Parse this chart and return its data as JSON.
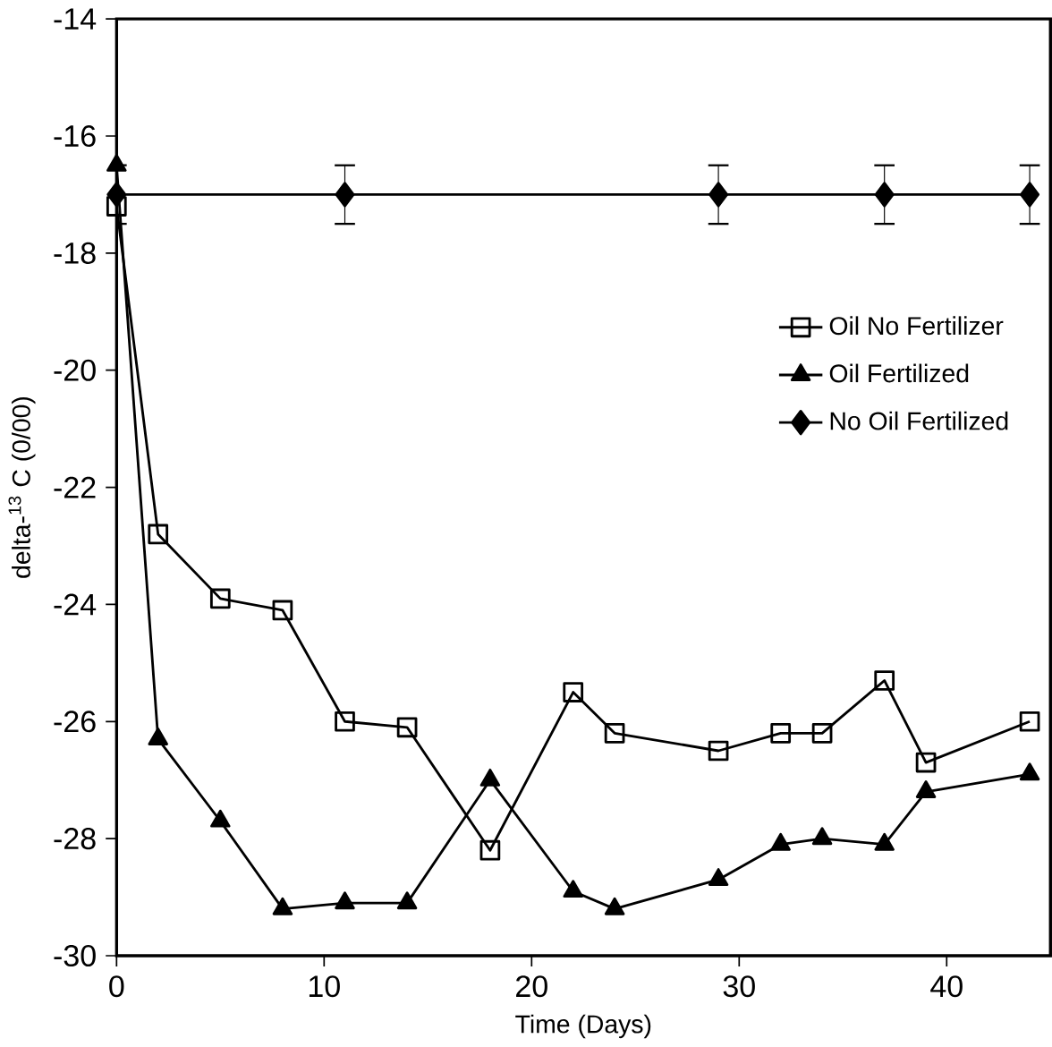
{
  "chart_data": {
    "type": "line",
    "xlabel": "Time (Days)",
    "ylabel": "delta-$^{13}$ C (0/00)",
    "xlim": [
      0,
      45
    ],
    "ylim": [
      -30,
      -14
    ],
    "xticks": [
      0,
      10,
      20,
      30,
      40
    ],
    "yticks": [
      -30,
      -28,
      -26,
      -24,
      -22,
      -20,
      -18,
      -16,
      -14
    ],
    "legend": "right",
    "grid": false,
    "series": [
      {
        "name": "Oil No Fertilizer",
        "color": "#000000",
        "marker": "square",
        "x": [
          0,
          2,
          5,
          8,
          11,
          14,
          18,
          22,
          24,
          29,
          32,
          34,
          37,
          39,
          44
        ],
        "values": [
          -17.2,
          -22.8,
          -23.9,
          -24.1,
          -26,
          -26.1,
          -28.2,
          -25.5,
          -26.2,
          -26.5,
          -26.2,
          -26.2,
          -25.3,
          -26.7,
          -26
        ]
      },
      {
        "name": "Oil Fertilized",
        "color": "#000000",
        "marker": "triangle",
        "x": [
          0,
          2,
          5,
          8,
          11,
          14,
          18,
          22,
          24,
          29,
          32,
          34,
          37,
          39,
          44
        ],
        "values": [
          -16.5,
          -26.3,
          -27.7,
          -29.2,
          -29.1,
          -29.1,
          -27,
          -28.9,
          -29.2,
          -28.7,
          -28.1,
          -28,
          -28.1,
          -27.2,
          -26.9
        ]
      },
      {
        "name": "No Oil Fertilized",
        "color": "#000000",
        "marker": "diamond",
        "x": [
          0,
          11,
          29,
          37,
          44
        ],
        "values": [
          -17,
          -17,
          -17,
          -17,
          -17
        ],
        "errors": [
          0.5,
          0.5,
          0.5,
          0.5,
          0.5
        ]
      }
    ]
  }
}
